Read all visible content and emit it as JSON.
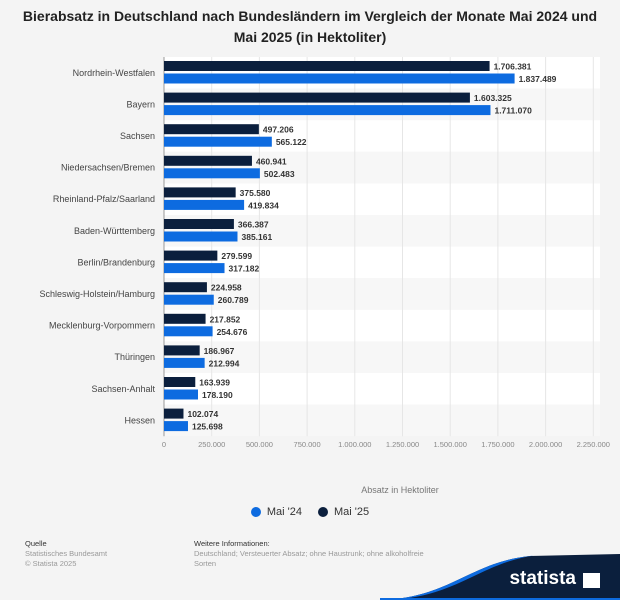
{
  "chart_data": {
    "type": "bar",
    "orientation": "horizontal",
    "title": "Bierabsatz in Deutschland nach Bundesländern im Vergleich der Monate Mai 2024 und Mai 2025 (in Hektoliter)",
    "xlabel": "Absatz in Hektoliter",
    "xlim": [
      0,
      2250000
    ],
    "xticks": [
      "0",
      "250.000",
      "500.000",
      "750.000",
      "1.000.000",
      "1.250.000",
      "1.500.000",
      "1.750.000",
      "2.000.000",
      "2.250.000"
    ],
    "grid": true,
    "legend_position": "bottom",
    "categories": [
      "Nordrhein-Westfalen",
      "Bayern",
      "Sachsen",
      "Niedersachsen/Bremen",
      "Rheinland-Pfalz/Saarland",
      "Baden-Württemberg",
      "Berlin/Brandenburg",
      "Schleswig-Holstein/Hamburg",
      "Mecklenburg-Vorpommern",
      "Thüringen",
      "Sachsen-Anhalt",
      "Hessen"
    ],
    "series": [
      {
        "name": "Mai '25",
        "color": "#0b1f3d",
        "values": [
          1706381,
          1603325,
          497206,
          460941,
          375580,
          366387,
          279599,
          224958,
          217852,
          186967,
          163939,
          102074
        ],
        "labels": [
          "1.706.381",
          "1.603.325",
          "497.206",
          "460.941",
          "375.580",
          "366.387",
          "279.599",
          "224.958",
          "217.852",
          "186.967",
          "163.939",
          "102.074"
        ]
      },
      {
        "name": "Mai '24",
        "color": "#0d6be0",
        "values": [
          1837489,
          1711070,
          565122,
          502483,
          419834,
          385161,
          317182,
          260789,
          254676,
          212994,
          178190,
          125698
        ],
        "labels": [
          "1.837.489",
          "1.711.070",
          "565.122",
          "502.483",
          "419.834",
          "385.161",
          "317.182",
          "260.789",
          "254.676",
          "212.994",
          "178.190",
          "125.698"
        ]
      }
    ]
  },
  "legend": [
    {
      "label": "Mai '24",
      "color": "#0d6be0"
    },
    {
      "label": "Mai '25",
      "color": "#0b1f3d"
    }
  ],
  "footer": {
    "source_heading": "Quelle",
    "source": "Statistisches Bundesamt",
    "copyright": "© Statista 2025",
    "info_heading": "Weitere Informationen:",
    "info": "Deutschland; Versteuerter Absatz; ohne Haustrunk; ohne alkoholfreie Sorten"
  },
  "logo": "statista"
}
